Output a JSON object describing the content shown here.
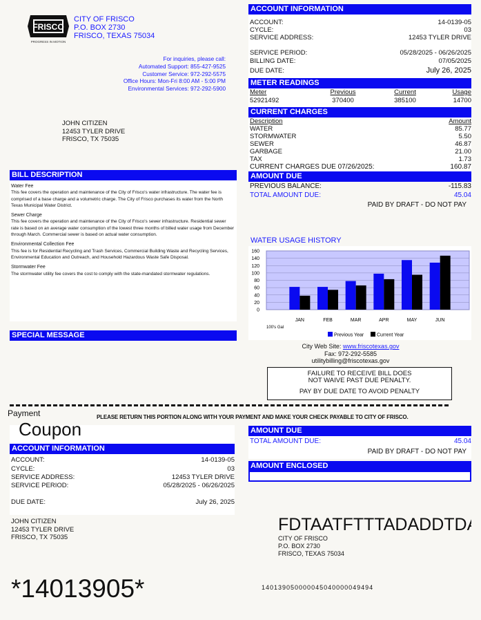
{
  "header": {
    "logo_text": "FRISCO",
    "logo_tagline": "PROGRESS IN MOTION",
    "city": "CITY OF FRISCO",
    "po_box": "P.O. BOX 2730",
    "city_state": "FRISCO, TEXAS 75034",
    "inquiries": [
      "For inquiries, please call:",
      "Automated Support: 855-427-9525",
      "Customer Service: 972-292-5575",
      "Office Hours: Mon-Fri 8:00 AM - 5:00 PM",
      "Environmental Services: 972-292-5900"
    ]
  },
  "customer": {
    "name": "JOHN CITIZEN",
    "street": "12453 TYLER DRIVE",
    "city": "FRISCO, TX 75035"
  },
  "account": {
    "title": "ACCOUNT INFORMATION",
    "account_label": "ACCOUNT:",
    "account": "14-0139-05",
    "cycle_label": "CYCLE:",
    "cycle": "03",
    "address_label": "SERVICE ADDRESS:",
    "address": "12453 TYLER DRIVE",
    "period_label": "SERVICE PERIOD:",
    "period": "05/28/2025 - 06/26/2025",
    "billing_label": "BILLING DATE:",
    "billing": "07/05/2025",
    "due_label": "DUE DATE:",
    "due": "July 26, 2025"
  },
  "meter": {
    "title": "METER READINGS",
    "headers": [
      "Meter",
      "Previous",
      "Current",
      "Usage"
    ],
    "values": [
      "52921492",
      "370400",
      "385100",
      "14700"
    ]
  },
  "charges": {
    "title": "CURRENT CHARGES",
    "desc_header": "Description",
    "amount_header": "Amount",
    "items": [
      {
        "label": "WATER",
        "amount": "85.77"
      },
      {
        "label": "STORMWATER",
        "amount": "5.50"
      },
      {
        "label": "SEWER",
        "amount": "46.87"
      },
      {
        "label": "GARBAGE",
        "amount": "21.00"
      },
      {
        "label": "TAX",
        "amount": "1.73"
      }
    ],
    "total_label": "CURRENT  CHARGES  DUE  07/26/2025:",
    "total": "160.87"
  },
  "amount_due": {
    "title": "AMOUNT DUE",
    "prev_label": "PREVIOUS BALANCE:",
    "prev": "-115.83",
    "total_label": "TOTAL AMOUNT DUE:",
    "total": "45.04",
    "note": "PAID BY DRAFT - DO NOT PAY"
  },
  "bill_description": {
    "title": "BILL DESCRIPTION",
    "sections": [
      {
        "title": "Water Fee",
        "text": "This fee covers the operation and maintenance of the City of Frisco's water infrastructure. The water fee is comprised of a base charge and a volumetric charge.  The City of Frisco purchases its water from the North Texas Municipal Water District."
      },
      {
        "title": "Sewer Charge",
        "text": "This fee covers the operation and maintenance of the City of Frisco's sewer infrastructure. Residential sewer rate is based on an average water consumption of the lowest three months of billed water usage from December through March.  Commercial sewer is based on actual water consumption."
      },
      {
        "title": "Environmental Collection  Fee",
        "text": "This fee is for Residential Recycling and Trash Services,  Commercial Building Waste and Recycling Services,  Environmental Education and Outreach, and Household Hazardous Waste Safe Disposal."
      },
      {
        "title": "Stormwater Fee",
        "text": "The stormwater utility fee covers the cost to comply  with the state-mandated stormwater regulations."
      }
    ]
  },
  "special_message": {
    "title": "SPECIAL MESSAGE"
  },
  "chart_data": {
    "type": "bar",
    "title": "WATER USAGE HISTORY",
    "categories": [
      "JAN",
      "FEB",
      "MAR",
      "APR",
      "MAY",
      "JUN"
    ],
    "series": [
      {
        "name": "Previous Year",
        "color": "#0a0af0",
        "values": [
          62,
          62,
          78,
          98,
          135,
          128
        ]
      },
      {
        "name": "Current Year",
        "color": "#000000",
        "values": [
          38,
          54,
          66,
          83,
          95,
          147
        ]
      }
    ],
    "ylim": [
      0,
      160
    ],
    "yticks": [
      0,
      20,
      40,
      60,
      80,
      100,
      120,
      140,
      160
    ],
    "ylabel": "100's Gal",
    "grid": true,
    "legend": "bottom",
    "plot_bg": "#c8c8ff"
  },
  "contact": {
    "web_label": "City Web Site:",
    "web": "www.friscotexas.gov",
    "fax": "Fax: 972-292-5585",
    "email": "utilitybilling@friscotexas.gov"
  },
  "notice": {
    "line1": "FAILURE TO RECEIVE BILL DOES",
    "line2": "NOT WAIVE PAST DUE PENALTY.",
    "line3": "PAY BY DUE DATE TO  AVOID PENALTY"
  },
  "coupon": {
    "payment": "Payment",
    "coupon": "Coupon",
    "instruction": "PLEASE RETURN THIS PORTION ALONG WITH YOUR PAYMENT AND MAKE YOUR CHECK PAYABLE TO CITY OF FRISCO.",
    "enclosed_title": "AMOUNT ENCLOSED",
    "barcode_text": "FDTAATFTTTADADDTDATAD",
    "scanline": "140139050000045040000049494",
    "account_barcode": "*14013905*"
  }
}
